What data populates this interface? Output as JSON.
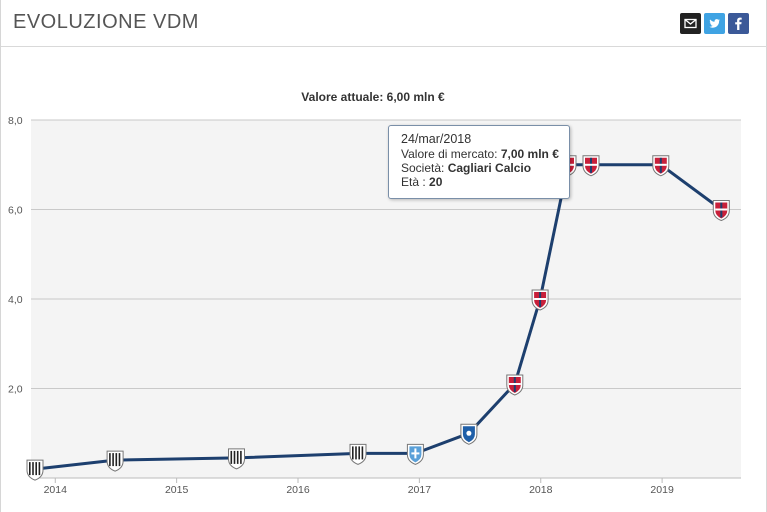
{
  "header": {
    "title": "EVOLUZIONE VDM",
    "share_icons": [
      "email-icon",
      "twitter-icon",
      "facebook-icon"
    ]
  },
  "chart_data": {
    "type": "line",
    "title": "Valore attuale: 6,00 mln €",
    "xlabel": "",
    "ylabel": "",
    "ylim": [
      0,
      8
    ],
    "yticks": [
      "2,0",
      "4,0",
      "6,0",
      "8,0"
    ],
    "xticks": [
      "2014",
      "2015",
      "2016",
      "2017",
      "2018",
      "2019"
    ],
    "grid": true,
    "line_color": "#1d3f6e",
    "series": [
      {
        "points": [
          {
            "x": "2013-11-01",
            "y": 0.2,
            "club": "juventus"
          },
          {
            "x": "2014-06-30",
            "y": 0.4,
            "club": "juventus"
          },
          {
            "x": "2015-06-30",
            "y": 0.45,
            "club": "juventus"
          },
          {
            "x": "2016-06-30",
            "y": 0.55,
            "club": "juventus"
          },
          {
            "x": "2016-12-20",
            "y": 0.55,
            "club": "novara"
          },
          {
            "x": "2017-05-30",
            "y": 1.0,
            "club": "brescia"
          },
          {
            "x": "2017-10-15",
            "y": 2.1,
            "club": "cagliari"
          },
          {
            "x": "2017-12-30",
            "y": 4.0,
            "club": "cagliari"
          },
          {
            "x": "2018-03-24",
            "y": 7.0,
            "club": "cagliari"
          },
          {
            "x": "2018-06-01",
            "y": 7.0,
            "club": "cagliari"
          },
          {
            "x": "2018-12-28",
            "y": 7.0,
            "club": "cagliari"
          },
          {
            "x": "2019-06-28",
            "y": 6.0,
            "club": "cagliari"
          }
        ]
      }
    ],
    "club_colors": {
      "juventus": "#222222",
      "novara": "#5aa0d8",
      "brescia": "#1f5fa8",
      "cagliari": "#c8203a"
    }
  },
  "tooltip": {
    "date": "24/mar/2018",
    "value_label": "Valore di mercato:",
    "value": "7,00 mln €",
    "club_label": "Società:",
    "club": "Cagliari Calcio",
    "age_label": "Età :",
    "age": "20"
  }
}
